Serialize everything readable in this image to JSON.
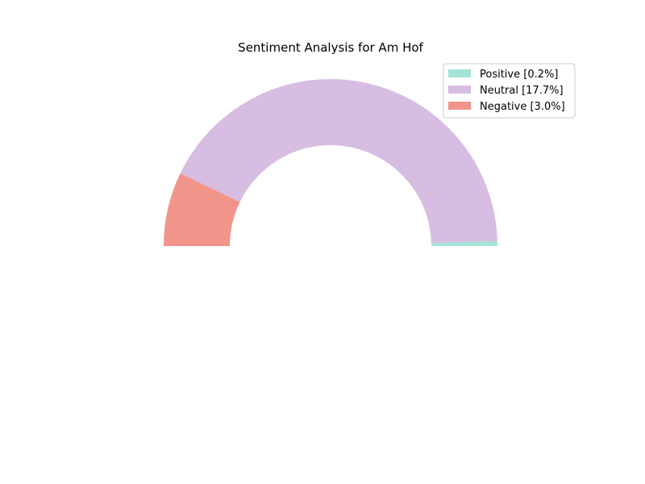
{
  "chart_data": {
    "type": "pie",
    "variant": "half-donut",
    "title": "Sentiment Analysis for Am Hof",
    "slices": [
      {
        "label": "Positive [0.2%]",
        "value": 0.2,
        "color": "#a3e4d7"
      },
      {
        "label": "Neutral [17.7%]",
        "value": 17.7,
        "color": "#d7bde2"
      },
      {
        "label": "Negative [3.0%]",
        "value": 3.0,
        "color": "#f1948a"
      }
    ],
    "legend_placement": "top-right"
  }
}
